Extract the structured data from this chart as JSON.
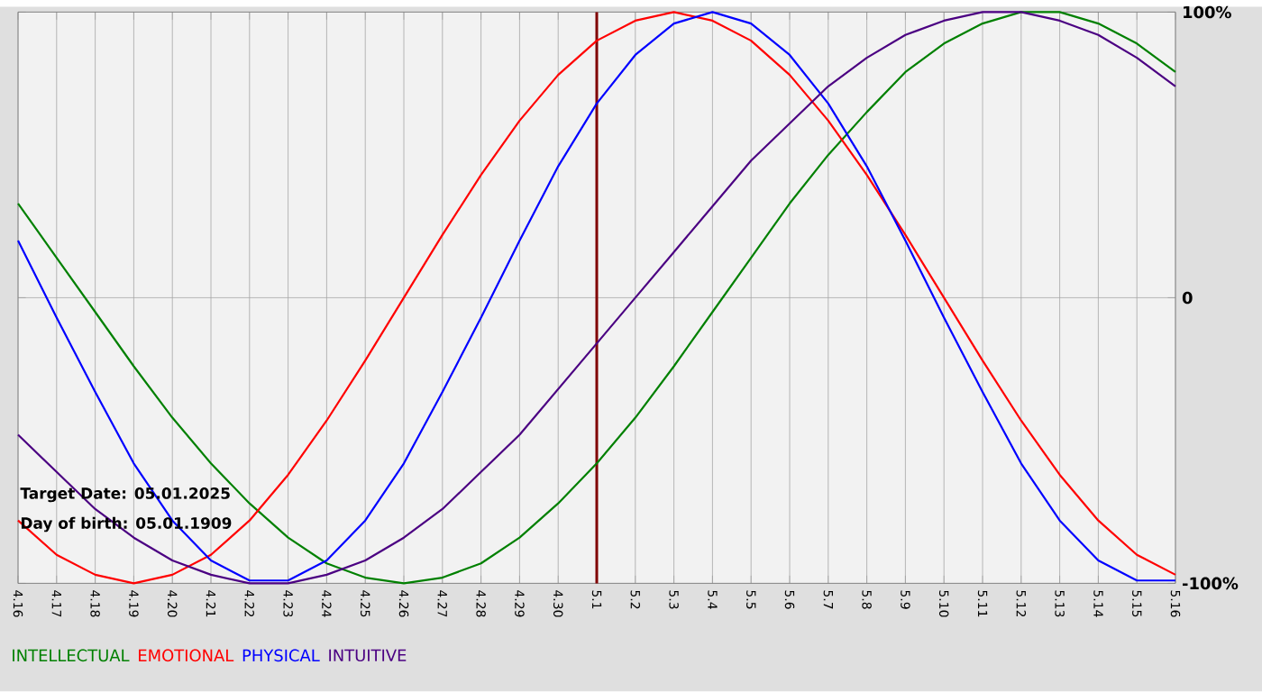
{
  "chart_data": {
    "type": "line",
    "categories": [
      "4.16",
      "4.17",
      "4.18",
      "4.19",
      "4.20",
      "4.21",
      "4.22",
      "4.23",
      "4.24",
      "4.25",
      "4.26",
      "4.27",
      "4.28",
      "4.29",
      "4.30",
      "5.1",
      "5.2",
      "5.3",
      "5.4",
      "5.5",
      "5.6",
      "5.7",
      "5.8",
      "5.9",
      "5.10",
      "5.11",
      "5.12",
      "5.13",
      "5.14",
      "5.15",
      "5.16"
    ],
    "series": [
      {
        "name": "INTELLECTUAL",
        "color": "#008000",
        "values": [
          33,
          14,
          -5,
          -24,
          -42,
          -58,
          -72,
          -84,
          -93,
          -98,
          -100,
          -98,
          -93,
          -84,
          -72,
          -58,
          -42,
          -24,
          -5,
          14,
          33,
          50,
          65,
          79,
          89,
          96,
          100,
          100,
          96,
          89,
          79
        ]
      },
      {
        "name": "EMOTIONAL",
        "color": "#ff0000",
        "values": [
          -78,
          -90,
          -97,
          -100,
          -97,
          -90,
          -78,
          -62,
          -43,
          -22,
          0,
          22,
          43,
          62,
          78,
          90,
          97,
          100,
          97,
          90,
          78,
          62,
          43,
          22,
          0,
          -22,
          -43,
          -62,
          -78,
          -90,
          -97
        ]
      },
      {
        "name": "PHYSICAL",
        "color": "#0000ff",
        "values": [
          20,
          -7,
          -33,
          -58,
          -78,
          -92,
          -99,
          -99,
          -92,
          -78,
          -58,
          -33,
          -7,
          20,
          46,
          68,
          85,
          96,
          100,
          96,
          85,
          68,
          46,
          20,
          -7,
          -33,
          -58,
          -78,
          -92,
          -99,
          -99
        ]
      },
      {
        "name": "INTUITIVE",
        "color": "#4b0082",
        "values": [
          -48,
          -61,
          -74,
          -84,
          -92,
          -97,
          -100,
          -100,
          -97,
          -92,
          -84,
          -74,
          -61,
          -48,
          -32,
          -16,
          0,
          16,
          32,
          48,
          61,
          74,
          84,
          92,
          97,
          100,
          100,
          97,
          92,
          84,
          74
        ]
      }
    ],
    "ylim": [
      -100,
      100
    ],
    "yticks": [
      {
        "value": 100,
        "label": "100%"
      },
      0,
      {
        "value": -100,
        "label": "-100%"
      }
    ],
    "grid": true,
    "legend": "bottom",
    "ref_lines": [
      {
        "axis": "x",
        "value": "5.1",
        "color": "#800000"
      }
    ],
    "annotations": [
      "Target Date: 05.01.2025",
      "Day of birth: 05.01.1909"
    ]
  }
}
